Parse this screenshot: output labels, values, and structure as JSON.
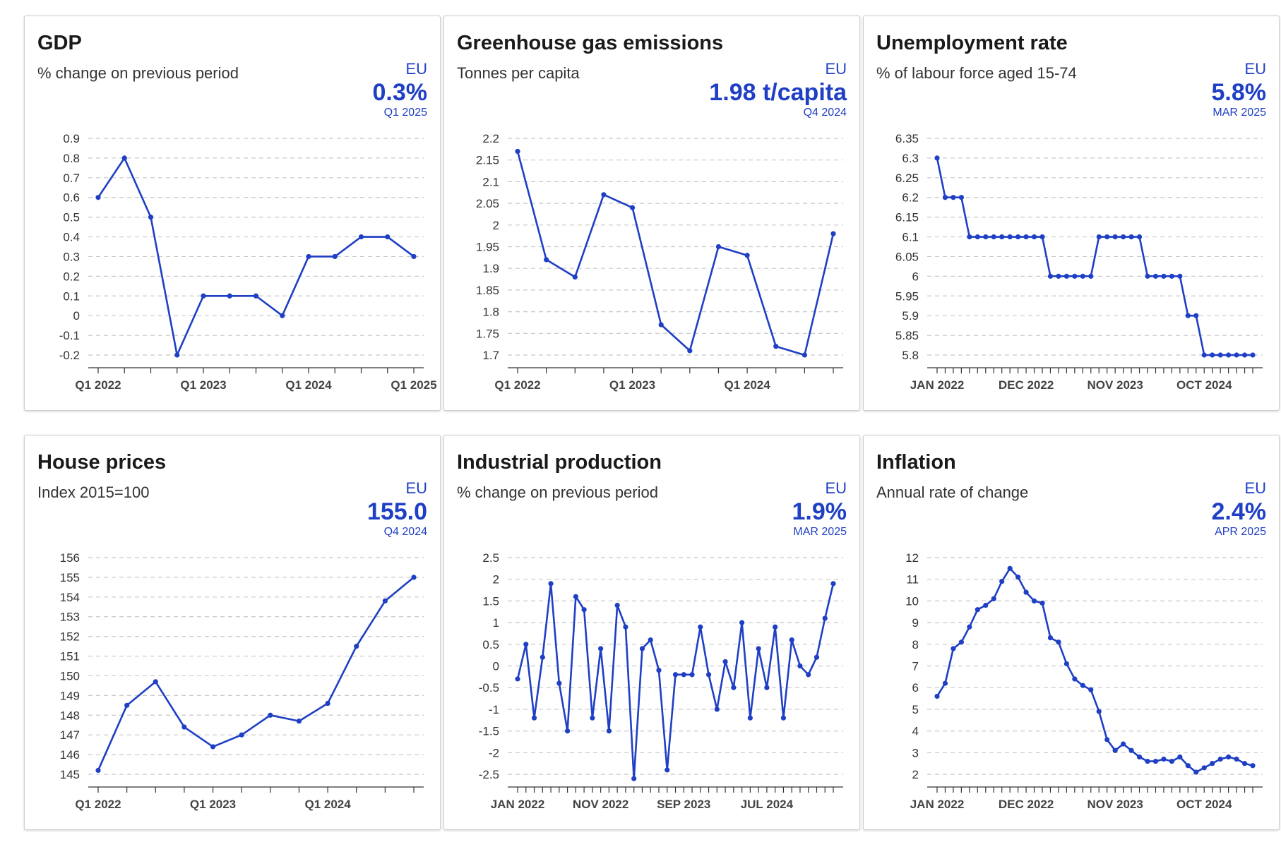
{
  "colors": {
    "accent": "#1f3fc4",
    "grid": "#c8c8c8",
    "axis": "#333333",
    "text": "#1a1a1a"
  },
  "cards": [
    {
      "title": "GDP",
      "subtitle": "% change on previous period",
      "region": "EU",
      "value": "0.3%",
      "period": "Q1 2025"
    },
    {
      "title": "Greenhouse gas emissions",
      "subtitle": "Tonnes per capita",
      "region": "EU",
      "value": "1.98 t/capita",
      "period": "Q4 2024"
    },
    {
      "title": "Unemployment rate",
      "subtitle": "% of labour force aged 15-74",
      "region": "EU",
      "value": "5.8%",
      "period": "MAR 2025"
    },
    {
      "title": "House prices",
      "subtitle": "Index 2015=100",
      "region": "EU",
      "value": "155.0",
      "period": "Q4 2024"
    },
    {
      "title": "Industrial production",
      "subtitle": "% change on previous period",
      "region": "EU",
      "value": "1.9%",
      "period": "MAR 2025"
    },
    {
      "title": "Inflation",
      "subtitle": "Annual rate of change",
      "region": "EU",
      "value": "2.4%",
      "period": "APR 2025"
    }
  ],
  "chart_data": [
    {
      "type": "line",
      "title": "GDP",
      "ylim": [
        -0.2,
        0.9
      ],
      "yticks": [
        0.9,
        0.8,
        0.7,
        0.6,
        0.5,
        0.4,
        0.3,
        0.2,
        0.1,
        0,
        -0.1,
        -0.2
      ],
      "x": [
        "Q1 2022",
        "Q2 2022",
        "Q3 2022",
        "Q4 2022",
        "Q1 2023",
        "Q2 2023",
        "Q3 2023",
        "Q4 2023",
        "Q1 2024",
        "Q2 2024",
        "Q3 2024",
        "Q4 2024",
        "Q1 2025"
      ],
      "values": [
        0.6,
        0.8,
        0.5,
        -0.2,
        0.1,
        0.1,
        0.1,
        0.0,
        0.3,
        0.3,
        0.4,
        0.4,
        0.3
      ],
      "xtick_labels": [
        {
          "i": 0,
          "label": "Q1 2022"
        },
        {
          "i": 4,
          "label": "Q1 2023"
        },
        {
          "i": 8,
          "label": "Q1 2024"
        },
        {
          "i": 12,
          "label": "Q1 2025"
        }
      ],
      "grid": true,
      "markers": true
    },
    {
      "type": "line",
      "title": "Greenhouse gas emissions",
      "ylim": [
        1.7,
        2.2
      ],
      "yticks": [
        2.2,
        2.15,
        2.1,
        2.05,
        2,
        1.95,
        1.9,
        1.85,
        1.8,
        1.75,
        1.7
      ],
      "x": [
        "Q1 2022",
        "Q2 2022",
        "Q3 2022",
        "Q4 2022",
        "Q1 2023",
        "Q2 2023",
        "Q3 2023",
        "Q4 2023",
        "Q1 2024",
        "Q2 2024",
        "Q3 2024",
        "Q4 2024"
      ],
      "values": [
        2.17,
        1.92,
        1.88,
        2.07,
        2.04,
        1.77,
        1.71,
        1.95,
        1.93,
        1.72,
        1.7,
        1.98
      ],
      "xtick_labels": [
        {
          "i": 0,
          "label": "Q1 2022"
        },
        {
          "i": 4,
          "label": "Q1 2023"
        },
        {
          "i": 8,
          "label": "Q1 2024"
        }
      ],
      "grid": true,
      "markers": true
    },
    {
      "type": "line",
      "title": "Unemployment rate",
      "ylim": [
        5.8,
        6.35
      ],
      "yticks": [
        6.35,
        6.3,
        6.25,
        6.2,
        6.15,
        6.1,
        6.05,
        6,
        5.95,
        5.9,
        5.85,
        5.8
      ],
      "x_start": "JAN 2022",
      "values": [
        6.3,
        6.2,
        6.2,
        6.2,
        6.1,
        6.1,
        6.1,
        6.1,
        6.1,
        6.1,
        6.1,
        6.1,
        6.1,
        6.1,
        6.0,
        6.0,
        6.0,
        6.0,
        6.0,
        6.0,
        6.1,
        6.1,
        6.1,
        6.1,
        6.1,
        6.1,
        6.0,
        6.0,
        6.0,
        6.0,
        6.0,
        5.9,
        5.9,
        5.8,
        5.8,
        5.8,
        5.8,
        5.8,
        5.8,
        5.8
      ],
      "xtick_labels": [
        {
          "i": 0,
          "label": "JAN 2022"
        },
        {
          "i": 11,
          "label": "DEC 2022"
        },
        {
          "i": 22,
          "label": "NOV 2023"
        },
        {
          "i": 33,
          "label": "OCT 2024"
        }
      ],
      "grid": true,
      "markers": true
    },
    {
      "type": "line",
      "title": "House prices",
      "ylim": [
        145,
        156
      ],
      "yticks": [
        156,
        155,
        154,
        153,
        152,
        151,
        150,
        149,
        148,
        147,
        146,
        145
      ],
      "x": [
        "Q1 2022",
        "Q2 2022",
        "Q3 2022",
        "Q4 2022",
        "Q1 2023",
        "Q2 2023",
        "Q3 2023",
        "Q4 2023",
        "Q1 2024",
        "Q2 2024",
        "Q3 2024",
        "Q4 2024"
      ],
      "values": [
        145.2,
        148.5,
        149.7,
        147.4,
        146.4,
        147.0,
        148.0,
        147.7,
        148.6,
        151.5,
        153.8,
        155.0
      ],
      "xtick_labels": [
        {
          "i": 0,
          "label": "Q1 2022"
        },
        {
          "i": 4,
          "label": "Q1 2023"
        },
        {
          "i": 8,
          "label": "Q1 2024"
        }
      ],
      "grid": true,
      "markers": true
    },
    {
      "type": "line",
      "title": "Industrial production",
      "ylim": [
        -2.5,
        2.5
      ],
      "yticks": [
        2.5,
        2,
        1.5,
        1,
        0.5,
        0,
        -0.5,
        -1,
        -1.5,
        -2,
        -2.5
      ],
      "x_start": "JAN 2022",
      "values": [
        -0.3,
        0.5,
        -1.2,
        0.2,
        1.9,
        -0.4,
        -1.5,
        1.6,
        1.3,
        -1.2,
        0.4,
        -1.5,
        1.4,
        0.9,
        -2.6,
        0.4,
        0.6,
        -0.1,
        -2.4,
        -0.2,
        -0.2,
        -0.2,
        0.9,
        -0.2,
        -1.0,
        0.1,
        -0.5,
        1.0,
        -1.2,
        0.4,
        -0.5,
        0.9,
        -1.2,
        0.6,
        0.0,
        -0.2,
        0.2,
        1.1,
        1.9
      ],
      "xtick_labels": [
        {
          "i": 0,
          "label": "JAN 2022"
        },
        {
          "i": 10,
          "label": "NOV 2022"
        },
        {
          "i": 20,
          "label": "SEP 2023"
        },
        {
          "i": 30,
          "label": "JUL 2024"
        }
      ],
      "grid": true,
      "markers": true
    },
    {
      "type": "line",
      "title": "Inflation",
      "ylim": [
        2,
        12
      ],
      "yticks": [
        12,
        11,
        10,
        9,
        8,
        7,
        6,
        5,
        4,
        3,
        2
      ],
      "x_start": "JAN 2022",
      "values": [
        5.6,
        6.2,
        7.8,
        8.1,
        8.8,
        9.6,
        9.8,
        10.1,
        10.9,
        11.5,
        11.1,
        10.4,
        10.0,
        9.9,
        8.3,
        8.1,
        7.1,
        6.4,
        6.1,
        5.9,
        4.9,
        3.6,
        3.1,
        3.4,
        3.1,
        2.8,
        2.6,
        2.6,
        2.7,
        2.6,
        2.8,
        2.4,
        2.1,
        2.3,
        2.5,
        2.7,
        2.8,
        2.7,
        2.5,
        2.4
      ],
      "xtick_labels": [
        {
          "i": 0,
          "label": "JAN 2022"
        },
        {
          "i": 11,
          "label": "DEC 2022"
        },
        {
          "i": 22,
          "label": "NOV 2023"
        },
        {
          "i": 33,
          "label": "OCT 2024"
        }
      ],
      "grid": true,
      "markers": true
    }
  ]
}
